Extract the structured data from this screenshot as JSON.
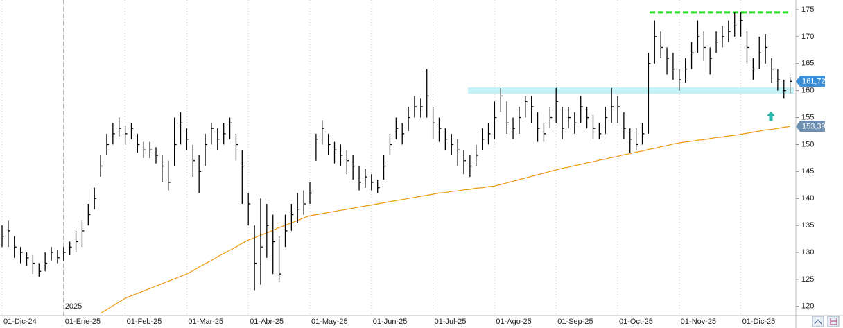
{
  "chart_data": {
    "type": "ohlc",
    "categories": [
      "01-Dic-24",
      null,
      null,
      null,
      null,
      null,
      null,
      null,
      null,
      null,
      "01-Ene-25",
      null,
      null,
      null,
      null,
      null,
      null,
      null,
      null,
      null,
      "01-Feb-25",
      null,
      null,
      null,
      null,
      null,
      null,
      null,
      null,
      null,
      "01-Mar-25",
      null,
      null,
      null,
      null,
      null,
      null,
      null,
      null,
      null,
      "01-Abr-25",
      null,
      null,
      null,
      null,
      null,
      null,
      null,
      null,
      null,
      "01-May-25",
      null,
      null,
      null,
      null,
      null,
      null,
      null,
      null,
      null,
      "01-Jun-25",
      null,
      null,
      null,
      null,
      null,
      null,
      null,
      null,
      null,
      "01-Jul-25",
      null,
      null,
      null,
      null,
      null,
      null,
      null,
      null,
      null,
      "01-Ago-25",
      null,
      null,
      null,
      null,
      null,
      null,
      null,
      null,
      null,
      "01-Sep-25",
      null,
      null,
      null,
      null,
      null,
      null,
      null,
      null,
      null,
      "01-Oct-25",
      null,
      null,
      null,
      null,
      null,
      null,
      null,
      null,
      null,
      "01-Nov-25",
      null,
      null,
      null,
      null,
      null,
      null,
      null,
      null,
      null,
      "01-Dic-25",
      null,
      null,
      null,
      null,
      null,
      null,
      null,
      null
    ],
    "high": [
      135,
      136,
      133,
      131,
      130,
      129.5,
      128,
      130,
      131,
      130.5,
      131,
      132,
      134,
      136,
      139,
      142,
      148,
      152,
      154,
      155,
      153.5,
      154,
      152,
      150.5,
      150.5,
      149.5,
      148,
      147,
      155,
      156,
      153,
      150,
      148,
      152,
      154,
      153,
      154,
      155,
      152,
      149,
      141,
      135,
      140,
      139,
      137,
      133,
      137,
      139,
      141,
      141.5,
      143,
      152,
      154.5,
      152,
      150.5,
      150,
      149,
      148,
      146,
      145.5,
      144.5,
      143.5,
      148,
      152,
      155,
      154,
      157,
      159,
      158.5,
      164,
      157,
      155,
      153,
      152,
      151,
      149,
      148,
      150,
      153,
      154,
      158,
      160.5,
      158,
      155,
      157,
      159,
      159,
      156,
      154,
      157,
      160.5,
      157,
      157,
      156,
      159,
      157,
      155.5,
      154,
      157,
      160.5,
      159,
      156,
      153,
      153,
      154,
      167,
      173,
      171,
      168,
      167,
      164,
      166,
      169,
      173,
      171,
      168,
      171,
      172,
      173,
      174.5,
      174.5,
      171,
      166,
      170,
      170.5,
      166,
      164,
      162,
      162.5
    ],
    "low": [
      131,
      131,
      129,
      128,
      127.5,
      126,
      125.5,
      126.5,
      128.5,
      128,
      128.5,
      129.5,
      130,
      131,
      135,
      138,
      144,
      148,
      150,
      151.5,
      150,
      151,
      148.5,
      147.5,
      147.5,
      146.5,
      143,
      141.5,
      146,
      150,
      149,
      144,
      141,
      146,
      150,
      149,
      150,
      151,
      147,
      139,
      135,
      123,
      124,
      129,
      126,
      124.5,
      131,
      134,
      135.5,
      137,
      139,
      147,
      150,
      148,
      146.5,
      146,
      144.5,
      143.5,
      141.5,
      142,
      141.5,
      141,
      143.5,
      148,
      151,
      150,
      152.5,
      155,
      155,
      155,
      151,
      150.5,
      149,
      148,
      146,
      144.5,
      144,
      146,
      149,
      150,
      151,
      156,
      152,
      151,
      152,
      155,
      154,
      150.5,
      150.5,
      153,
      154,
      151,
      153,
      152,
      154,
      153,
      151,
      151,
      152,
      154,
      154,
      151,
      148.5,
      149,
      150,
      152,
      165,
      166,
      163,
      162,
      160,
      161.5,
      164,
      167,
      165.5,
      163,
      167,
      168,
      169,
      170,
      170,
      165,
      162,
      164,
      165,
      161.5,
      160,
      158.5,
      159.5
    ],
    "close": [
      133,
      134,
      131,
      130,
      129,
      128,
      126.5,
      128,
      130,
      129,
      130,
      131,
      132,
      134,
      137,
      140,
      146,
      150,
      152,
      153,
      152,
      153,
      150,
      149,
      149,
      148,
      146,
      143,
      150,
      154,
      151,
      147,
      145,
      150,
      153,
      151,
      152,
      154,
      150,
      146,
      139,
      128,
      131,
      135,
      132,
      126,
      134,
      137,
      138,
      139,
      141,
      151,
      153,
      150,
      149,
      148,
      147,
      146,
      143,
      144,
      143,
      142,
      146,
      150,
      153,
      152,
      155,
      157,
      157,
      159,
      154,
      153,
      151,
      150,
      149,
      147,
      146,
      148,
      151,
      152,
      155,
      159,
      154,
      153,
      155,
      158,
      157,
      153,
      152,
      155,
      158,
      153,
      155,
      154,
      157,
      155,
      153,
      152,
      155,
      157,
      157,
      153,
      151,
      150,
      152,
      165,
      170,
      168,
      166,
      164,
      162,
      164,
      167,
      170,
      168,
      166,
      169,
      170,
      171,
      172,
      173,
      168,
      164,
      167,
      168,
      164,
      162,
      160,
      161.72
    ],
    "color": "#000000",
    "moving_average": {
      "color": "#f0960a",
      "values": [
        null,
        null,
        null,
        null,
        null,
        null,
        null,
        null,
        null,
        null,
        null,
        null,
        null,
        null,
        null,
        null,
        118.7,
        119.4,
        120.1,
        120.8,
        121.5,
        121.95,
        122.4,
        122.85,
        123.3,
        123.75,
        124.2,
        124.65,
        125.1,
        125.55,
        126.0,
        126.6,
        127.3,
        127.9,
        128.5,
        129.2,
        129.8,
        130.4,
        131.0,
        131.7,
        132.3,
        132.7,
        133.2,
        133.6,
        134.1,
        134.6,
        135.0,
        135.5,
        135.9,
        136.4,
        136.8,
        137.0,
        137.2,
        137.4,
        137.6,
        137.8,
        138.0,
        138.2,
        138.4,
        138.6,
        138.8,
        139.0,
        139.2,
        139.4,
        139.6,
        139.8,
        140.0,
        140.2,
        140.4,
        140.6,
        140.8,
        141.0,
        141.1,
        141.3,
        141.4,
        141.6,
        141.7,
        141.9,
        142.0,
        142.2,
        142.3,
        142.6,
        142.9,
        143.2,
        143.5,
        143.8,
        144.1,
        144.4,
        144.7,
        145.0,
        145.3,
        145.6,
        145.8,
        146.1,
        146.3,
        146.6,
        146.8,
        147.1,
        147.3,
        147.6,
        147.8,
        148.1,
        148.3,
        148.6,
        148.8,
        149.1,
        149.3,
        149.6,
        149.8,
        150.1,
        150.3,
        150.5,
        150.6,
        150.8,
        150.9,
        151.1,
        151.3,
        151.4,
        151.6,
        151.7,
        151.9,
        152.1,
        152.3,
        152.5,
        152.7,
        152.8,
        153.0,
        153.2,
        153.39
      ]
    },
    "ylim": [
      118.3,
      176.8
    ],
    "yticks": [
      120,
      125,
      130,
      135,
      140,
      145,
      150,
      155,
      160,
      165,
      170,
      175
    ],
    "grid": true,
    "year_label": "2025",
    "price_tags": [
      {
        "value": 161.72,
        "label": "161,72",
        "color": "#3a8fd8"
      },
      {
        "value": 153.39,
        "label": "153,39",
        "color": "#6f8fb0"
      }
    ],
    "resistance": {
      "value": 174.5,
      "color": "#22dd22"
    },
    "support": {
      "value": 160,
      "color": "#c4f2f7"
    },
    "signal_arrow": {
      "value": 155,
      "color": "#2ab8a8"
    }
  }
}
